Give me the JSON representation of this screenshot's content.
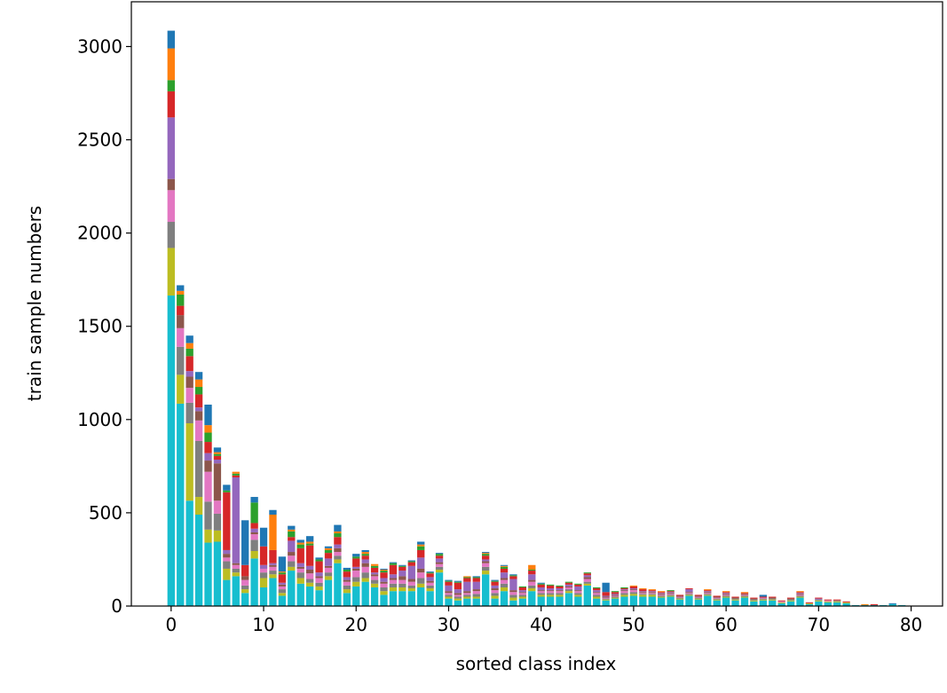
{
  "chart_data": {
    "type": "stacked_bar",
    "xlabel": "sorted class index",
    "ylabel": "train sample numbers",
    "x": [
      0,
      1,
      2,
      3,
      4,
      5,
      6,
      7,
      8,
      9,
      10,
      11,
      12,
      13,
      14,
      15,
      16,
      17,
      18,
      19,
      20,
      21,
      22,
      23,
      24,
      25,
      26,
      27,
      28,
      29,
      30,
      31,
      32,
      33,
      34,
      35,
      36,
      37,
      38,
      39,
      40,
      41,
      42,
      43,
      44,
      45,
      46,
      47,
      48,
      49,
      50,
      51,
      52,
      53,
      54,
      55,
      56,
      57,
      58,
      59,
      60,
      61,
      62,
      63,
      64,
      65,
      66,
      67,
      68,
      69,
      70,
      71,
      72,
      73,
      74,
      75,
      76,
      77,
      78,
      79
    ],
    "xlim": [
      -4.3,
      83.4
    ],
    "xticks": [
      0,
      10,
      20,
      30,
      40,
      50,
      60,
      70,
      80
    ],
    "ylim": [
      0,
      3240
    ],
    "yticks": [
      0,
      500,
      1000,
      1500,
      2000,
      2500,
      3000
    ],
    "bar_width": 0.8,
    "series": [
      {
        "color": "#17becf",
        "values": [
          1665,
          1085,
          565,
          490,
          340,
          345,
          140,
          160,
          70,
          255,
          100,
          150,
          55,
          190,
          120,
          105,
          85,
          140,
          230,
          70,
          105,
          130,
          100,
          60,
          80,
          80,
          80,
          100,
          80,
          180,
          40,
          30,
          40,
          40,
          170,
          40,
          80,
          30,
          40,
          80,
          50,
          50,
          50,
          70,
          50,
          110,
          40,
          30,
          40,
          50,
          55,
          50,
          50,
          45,
          50,
          35,
          55,
          35,
          55,
          30,
          45,
          30,
          45,
          25,
          30,
          30,
          15,
          25,
          45,
          10,
          25,
          20,
          20,
          15,
          5,
          5,
          5,
          5,
          10,
          5
        ]
      },
      {
        "color": "#bcbd22",
        "values": [
          255,
          155,
          415,
          95,
          70,
          60,
          60,
          20,
          20,
          40,
          50,
          20,
          15,
          20,
          30,
          20,
          20,
          20,
          20,
          20,
          25,
          20,
          20,
          20,
          20,
          20,
          15,
          20,
          15,
          15,
          10,
          10,
          10,
          10,
          20,
          15,
          20,
          15,
          10,
          15,
          10,
          10,
          10,
          10,
          10,
          10,
          10,
          5,
          5,
          10,
          10,
          10,
          10,
          5,
          5,
          5,
          5,
          5,
          5,
          5,
          5,
          5,
          5,
          5,
          5,
          5,
          5,
          5,
          5,
          5,
          5,
          5,
          5,
          5,
          0,
          0,
          0,
          0,
          0,
          0
        ]
      },
      {
        "color": "#7f7f7f",
        "values": [
          140,
          150,
          110,
          300,
          150,
          90,
          40,
          20,
          20,
          60,
          30,
          20,
          20,
          30,
          30,
          20,
          20,
          20,
          20,
          20,
          25,
          30,
          20,
          20,
          20,
          20,
          15,
          30,
          15,
          15,
          10,
          10,
          10,
          15,
          20,
          15,
          20,
          15,
          10,
          15,
          10,
          10,
          10,
          10,
          10,
          10,
          10,
          5,
          5,
          10,
          10,
          5,
          5,
          5,
          5,
          5,
          5,
          5,
          5,
          5,
          5,
          5,
          5,
          5,
          5,
          5,
          0,
          5,
          5,
          0,
          5,
          0,
          5,
          0,
          0,
          0,
          0,
          0,
          0,
          0
        ]
      },
      {
        "color": "#e377c2",
        "values": [
          170,
          100,
          80,
          110,
          160,
          70,
          20,
          20,
          30,
          30,
          20,
          20,
          15,
          30,
          20,
          30,
          25,
          25,
          20,
          20,
          35,
          30,
          20,
          20,
          20,
          20,
          20,
          30,
          15,
          15,
          10,
          10,
          10,
          15,
          20,
          15,
          20,
          15,
          10,
          20,
          10,
          10,
          10,
          10,
          10,
          15,
          10,
          5,
          5,
          10,
          10,
          5,
          5,
          5,
          5,
          5,
          5,
          5,
          5,
          5,
          5,
          0,
          5,
          0,
          5,
          0,
          5,
          0,
          5,
          0,
          0,
          5,
          0,
          0,
          0,
          0,
          0,
          0,
          0,
          0
        ]
      },
      {
        "color": "#8c564b",
        "values": [
          60,
          70,
          60,
          50,
          60,
          200,
          20,
          10,
          20,
          10,
          0,
          10,
          10,
          20,
          10,
          20,
          10,
          10,
          20,
          10,
          10,
          20,
          10,
          10,
          10,
          20,
          15,
          20,
          10,
          10,
          10,
          10,
          10,
          10,
          10,
          10,
          10,
          10,
          5,
          10,
          5,
          5,
          5,
          5,
          5,
          10,
          5,
          5,
          5,
          5,
          5,
          5,
          5,
          5,
          5,
          5,
          5,
          5,
          5,
          5,
          5,
          5,
          5,
          5,
          0,
          5,
          0,
          5,
          5,
          0,
          0,
          0,
          0,
          0,
          0,
          0,
          0,
          0,
          0,
          0
        ]
      },
      {
        "color": "#9467bd",
        "values": [
          330,
          0,
          30,
          20,
          40,
          20,
          20,
          460,
          0,
          20,
          20,
          10,
          10,
          60,
          20,
          20,
          20,
          40,
          20,
          15,
          10,
          20,
          10,
          20,
          20,
          30,
          70,
          60,
          20,
          20,
          30,
          20,
          50,
          40,
          10,
          15,
          30,
          60,
          10,
          30,
          15,
          10,
          10,
          10,
          20,
          10,
          10,
          5,
          5,
          5,
          5,
          5,
          5,
          5,
          5,
          0,
          15,
          0,
          5,
          0,
          5,
          0,
          0,
          0,
          0,
          0,
          0,
          0,
          5,
          0,
          5,
          0,
          0,
          0,
          0,
          0,
          0,
          0,
          0,
          0
        ]
      },
      {
        "color": "#d62728",
        "values": [
          140,
          50,
          80,
          70,
          60,
          20,
          310,
          10,
          60,
          30,
          100,
          70,
          45,
          20,
          80,
          110,
          60,
          30,
          40,
          30,
          45,
          20,
          25,
          30,
          50,
          20,
          20,
          40,
          20,
          15,
          20,
          35,
          20,
          20,
          20,
          20,
          20,
          15,
          15,
          20,
          15,
          15,
          10,
          10,
          10,
          10,
          10,
          20,
          10,
          5,
          10,
          10,
          5,
          5,
          5,
          5,
          5,
          5,
          5,
          5,
          5,
          5,
          5,
          5,
          5,
          5,
          5,
          5,
          5,
          5,
          5,
          5,
          5,
          5,
          0,
          0,
          5,
          0,
          0,
          0
        ]
      },
      {
        "color": "#2ca02c",
        "values": [
          60,
          60,
          40,
          40,
          50,
          10,
          10,
          10,
          0,
          110,
          0,
          0,
          10,
          30,
          20,
          10,
          10,
          15,
          20,
          10,
          10,
          10,
          10,
          10,
          10,
          5,
          5,
          20,
          5,
          10,
          5,
          5,
          5,
          5,
          10,
          5,
          10,
          5,
          5,
          5,
          5,
          5,
          5,
          5,
          5,
          5,
          5,
          0,
          5,
          5,
          0,
          0,
          0,
          0,
          5,
          0,
          0,
          0,
          0,
          0,
          0,
          0,
          0,
          0,
          0,
          0,
          0,
          0,
          0,
          0,
          0,
          0,
          0,
          0,
          0,
          0,
          0,
          0,
          0,
          0
        ]
      },
      {
        "color": "#ff7f0e",
        "values": [
          170,
          20,
          30,
          40,
          40,
          10,
          0,
          10,
          0,
          0,
          0,
          190,
          5,
          10,
          10,
          10,
          0,
          10,
          10,
          0,
          0,
          10,
          10,
          5,
          0,
          0,
          0,
          10,
          0,
          0,
          0,
          0,
          5,
          0,
          5,
          0,
          5,
          0,
          0,
          25,
          0,
          0,
          0,
          0,
          0,
          0,
          0,
          0,
          0,
          0,
          5,
          5,
          5,
          5,
          0,
          0,
          0,
          0,
          5,
          0,
          5,
          0,
          5,
          0,
          0,
          0,
          0,
          0,
          5,
          0,
          0,
          0,
          0,
          0,
          0,
          5,
          0,
          0,
          0,
          0
        ]
      },
      {
        "color": "#1f77b4",
        "values": [
          95,
          30,
          40,
          40,
          110,
          25,
          30,
          0,
          240,
          30,
          100,
          25,
          80,
          20,
          15,
          30,
          10,
          10,
          35,
          10,
          15,
          10,
          0,
          5,
          5,
          5,
          5,
          15,
          5,
          5,
          5,
          5,
          0,
          5,
          5,
          5,
          5,
          5,
          0,
          0,
          5,
          0,
          0,
          0,
          0,
          0,
          0,
          50,
          0,
          0,
          0,
          0,
          0,
          0,
          0,
          0,
          0,
          0,
          0,
          0,
          0,
          0,
          0,
          0,
          10,
          0,
          0,
          0,
          0,
          0,
          0,
          0,
          0,
          0,
          0,
          0,
          0,
          0,
          5,
          0
        ]
      }
    ]
  }
}
